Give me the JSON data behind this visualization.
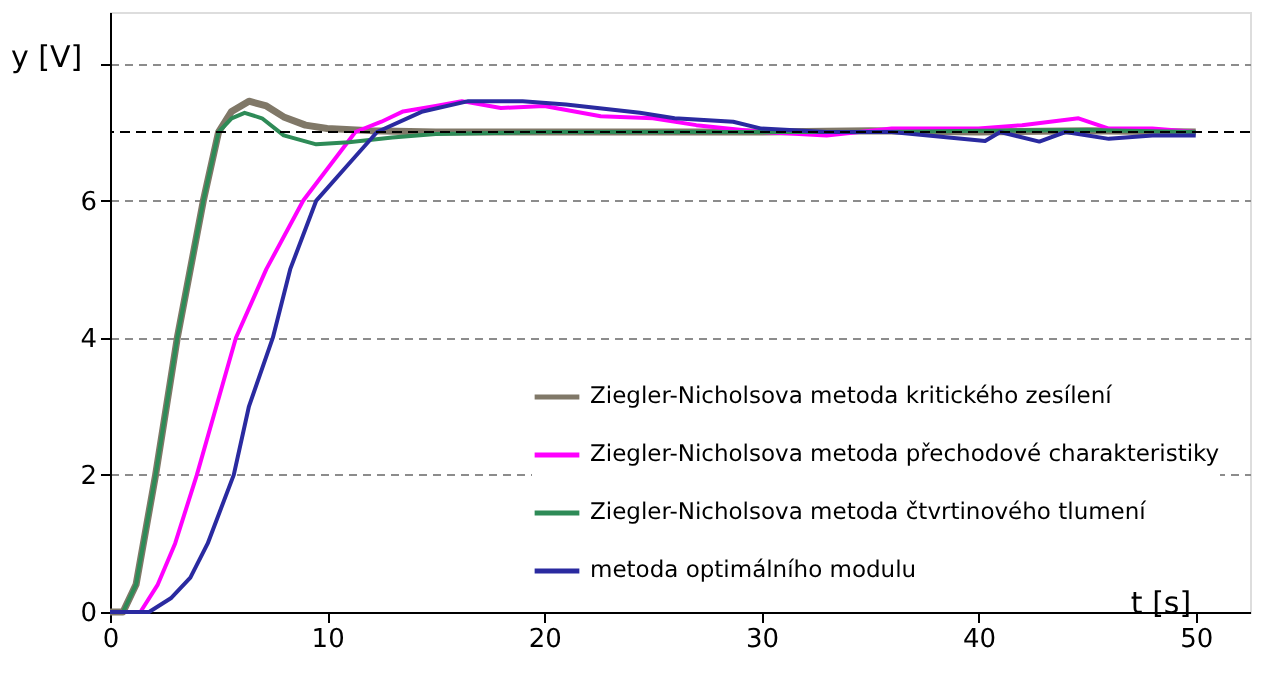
{
  "chart_data": {
    "type": "line",
    "xlabel": "t [s]",
    "ylabel": "y [V]",
    "xlim": [
      0,
      52.5
    ],
    "ylim": [
      0,
      8.75
    ],
    "xticks": [
      0,
      10,
      20,
      30,
      40,
      50
    ],
    "yticks": [
      0,
      2,
      4,
      6,
      {
        "value": 8,
        "label": null
      }
    ],
    "grid": "y",
    "legend": "bottom right",
    "marker": "none",
    "line_style": "solid",
    "ref_lines": [
      {
        "axis": "y",
        "value": 7,
        "color": "#000000",
        "line_style": "dashed"
      }
    ],
    "series": [
      {
        "name": "Ziegler-Nicholsova metoda kritického zesílení",
        "color": "#807868",
        "x": [
          0,
          0.6,
          1.2,
          2.1,
          3.1,
          4.3,
          5.0,
          5.6,
          6.4,
          7.2,
          8.0,
          9.0,
          10.0,
          12,
          15,
          20,
          25,
          30,
          35,
          40,
          45,
          50
        ],
        "values": [
          0,
          0,
          0.4,
          2.0,
          4.0,
          6.0,
          7.0,
          7.3,
          7.45,
          7.38,
          7.22,
          7.1,
          7.05,
          7.02,
          7.0,
          7.0,
          7.0,
          7.0,
          7.02,
          7.0,
          7.02,
          7.0
        ]
      },
      {
        "name": "Ziegler-Nicholsova metoda přechodové charakteristiky",
        "color": "#ff00ff",
        "x": [
          0,
          1.4,
          2.2,
          3.0,
          4.0,
          4.9,
          5.8,
          7.2,
          8.9,
          10.1,
          11.3,
          12.5,
          13.5,
          15,
          16.2,
          18,
          20,
          22.6,
          25,
          27,
          30,
          33,
          36,
          40,
          42,
          44.6,
          46,
          48,
          50
        ],
        "values": [
          0,
          0,
          0.4,
          1.0,
          2.0,
          3.0,
          4.0,
          5.0,
          6.0,
          6.5,
          7.0,
          7.15,
          7.3,
          7.38,
          7.45,
          7.35,
          7.38,
          7.23,
          7.2,
          7.1,
          7.0,
          6.95,
          7.05,
          7.05,
          7.1,
          7.2,
          7.05,
          7.05,
          7.0
        ]
      },
      {
        "name": "Ziegler-Nicholsova metoda čtvrtinového tlumení",
        "color": "#2e8b57",
        "x": [
          0,
          0.6,
          1.2,
          2.1,
          3.1,
          4.3,
          5.0,
          5.6,
          6.2,
          7.0,
          8.0,
          9.5,
          11,
          13,
          15,
          20,
          25,
          30,
          35,
          40,
          45,
          50
        ],
        "values": [
          0,
          0,
          0.4,
          2.0,
          4.0,
          6.0,
          7.0,
          7.2,
          7.28,
          7.2,
          6.95,
          6.82,
          6.85,
          6.92,
          6.97,
          7.0,
          7.0,
          7.0,
          7.0,
          7.02,
          7.03,
          7.0
        ]
      },
      {
        "name": "metoda optimálního modulu",
        "color": "#2a2aa0",
        "x": [
          0,
          1.8,
          2.8,
          3.7,
          4.5,
          5.7,
          6.4,
          7.5,
          8.3,
          9.5,
          10.9,
          12.3,
          14.4,
          16.5,
          19,
          21,
          24.4,
          26,
          28.7,
          30,
          33,
          36,
          40.3,
          41,
          42.8,
          44,
          46,
          48,
          50
        ],
        "values": [
          0,
          0,
          0.2,
          0.5,
          1.0,
          2.0,
          3.0,
          4.0,
          5.0,
          6.0,
          6.5,
          7.0,
          7.3,
          7.45,
          7.45,
          7.4,
          7.28,
          7.2,
          7.15,
          7.05,
          7.0,
          7.0,
          6.87,
          7.0,
          6.86,
          7.0,
          6.9,
          6.95,
          6.95
        ]
      }
    ]
  }
}
